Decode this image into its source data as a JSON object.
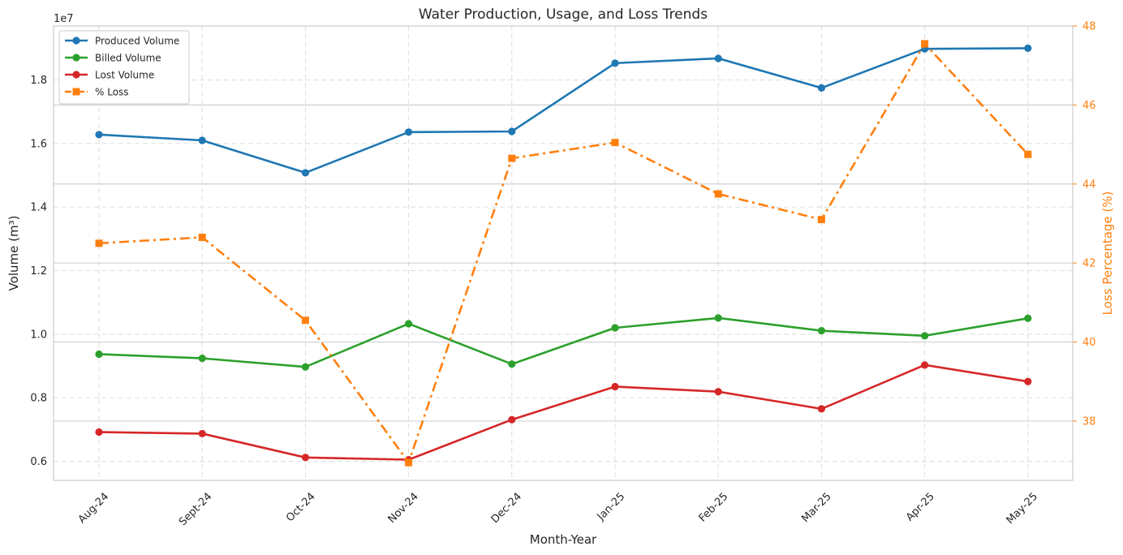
{
  "chart_data": {
    "type": "line",
    "title": "Water Production, Usage, and Loss Trends",
    "xlabel": "Month-Year",
    "ylabel": "Volume (m³)",
    "y2label": "Loss Percentage (%)",
    "y_offset_label": "1e7",
    "categories": [
      "Aug-24",
      "Sept-24",
      "Oct-24",
      "Nov-24",
      "Dec-24",
      "Jan-25",
      "Feb-25",
      "Mar-25",
      "Apr-25",
      "May-25"
    ],
    "ylim": [
      5.4,
      19.7
    ],
    "y_ticks": [
      "0.6",
      "0.8",
      "1.0",
      "1.2",
      "1.4",
      "1.6",
      "1.8"
    ],
    "y2lim": [
      36.5,
      48.0
    ],
    "y2_ticks": [
      "38",
      "40",
      "42",
      "44",
      "46",
      "48"
    ],
    "grid": true,
    "legend_position": "top-left",
    "series": [
      {
        "name": "Produced Volume",
        "axis": "left",
        "color": "#1f77b4",
        "style": "solid",
        "marker": "circle",
        "values": [
          16.28,
          16.1,
          15.08,
          16.36,
          16.38,
          18.53,
          18.68,
          17.75,
          18.98,
          19.0
        ]
      },
      {
        "name": "Billed Volume",
        "axis": "left",
        "color": "#2ca02c",
        "style": "solid",
        "marker": "circle",
        "values": [
          9.37,
          9.24,
          8.97,
          10.33,
          9.06,
          10.2,
          10.51,
          10.11,
          9.95,
          10.5
        ]
      },
      {
        "name": "Lost Volume",
        "axis": "left",
        "color": "#d62728",
        "style": "solid",
        "marker": "circle",
        "values": [
          6.92,
          6.87,
          6.12,
          6.05,
          7.31,
          8.35,
          8.19,
          7.65,
          9.03,
          8.51
        ]
      },
      {
        "name": "% Loss",
        "axis": "right",
        "color": "#ff7f0e",
        "style": "dashdot",
        "marker": "square",
        "values": [
          42.5,
          42.65,
          40.55,
          36.95,
          44.65,
          45.05,
          43.75,
          43.1,
          47.55,
          44.75
        ]
      }
    ]
  }
}
